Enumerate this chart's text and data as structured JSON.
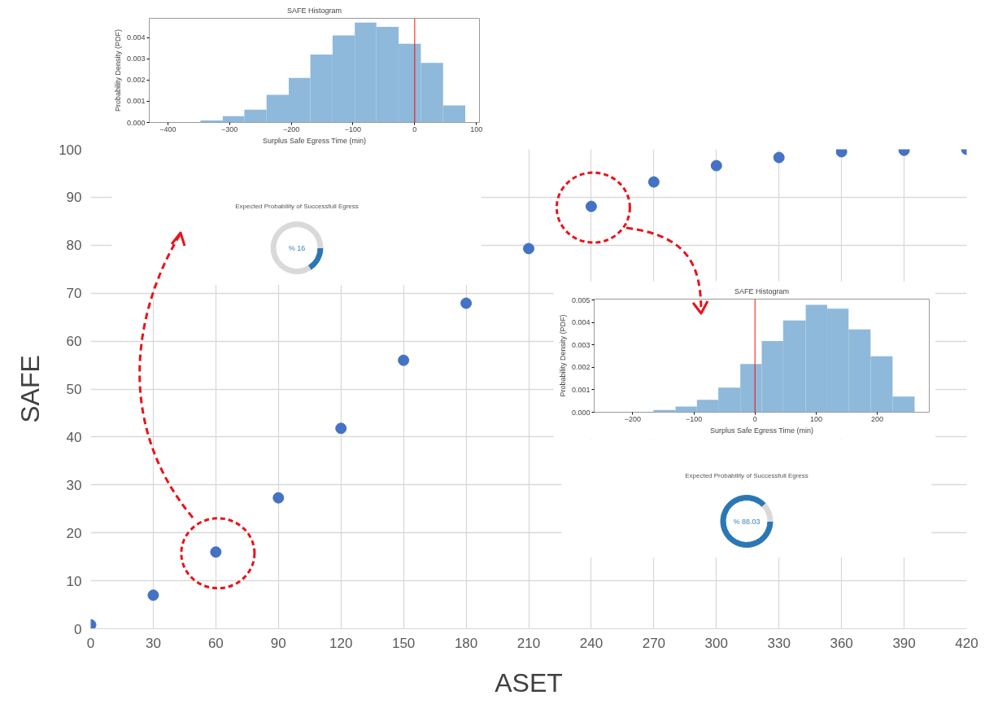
{
  "chart_data": [
    {
      "type": "scatter",
      "xlabel": "ASET",
      "ylabel": "SAFE",
      "x": [
        0,
        30,
        60,
        90,
        120,
        150,
        180,
        210,
        240,
        270,
        300,
        330,
        360,
        390,
        420
      ],
      "values": [
        0.8,
        7,
        16,
        27.3,
        41.8,
        56,
        67.9,
        79.3,
        88.1,
        93.2,
        96.6,
        98.3,
        99.5,
        99.8,
        100
      ],
      "color": "#4472c4",
      "marker": "circle",
      "xlim": [
        0,
        420
      ],
      "ylim": [
        0,
        100
      ],
      "xticks": [
        0,
        30,
        60,
        90,
        120,
        150,
        180,
        210,
        240,
        270,
        300,
        330,
        360,
        390,
        420
      ],
      "yticks": [
        0,
        10,
        20,
        30,
        40,
        50,
        60,
        70,
        80,
        90,
        100
      ],
      "grid": true
    },
    {
      "type": "histogram",
      "title": "SAFE Histogram",
      "xlabel": "Surplus Safe Egress Time (min)",
      "ylabel": "Probability Density (PDF)",
      "bins": [
        -347,
        -311,
        -276,
        -240,
        -204,
        -169,
        -133,
        -97,
        -62,
        -26,
        10,
        46,
        82
      ],
      "values": [
        0.0001,
        0.0003,
        0.0006,
        0.0013,
        0.0021,
        0.0032,
        0.0041,
        0.0047,
        0.0045,
        0.0037,
        0.0028,
        0.0008
      ],
      "color": "#8fb9da",
      "xlim": [
        -430,
        105
      ],
      "ylim": [
        0,
        0.0049
      ],
      "xticks": [
        {
          "value": -400,
          "label": "−400"
        },
        {
          "value": -300,
          "label": "−300"
        },
        {
          "value": -200,
          "label": "−200"
        },
        {
          "value": -100,
          "label": "−100"
        },
        0,
        100
      ],
      "yticks": [
        {
          "value": 0,
          "label": "0.000"
        },
        {
          "value": 0.001,
          "label": "0.001"
        },
        {
          "value": 0.002,
          "label": "0.002"
        },
        {
          "value": 0.003,
          "label": "0.003"
        },
        {
          "value": 0.004,
          "label": "0.004"
        }
      ],
      "ref_lines": [
        {
          "axis": "x",
          "value": 0,
          "color": "#ff0000"
        }
      ],
      "grid": false
    },
    {
      "type": "donut",
      "title": "Expected Probability of Successfull Egress",
      "categories": [
        null,
        null
      ],
      "values": [
        16,
        84
      ],
      "colors": [
        "#2a77b4",
        "#d9d9d9"
      ],
      "annotations": [
        "% 16"
      ]
    },
    {
      "type": "histogram",
      "title": "SAFE Histogram",
      "xlabel": "Surplus Safe Egress Time (min)",
      "ylabel": "Probability Density (PDF)",
      "bins": [
        -166,
        -130,
        -95,
        -60,
        -24,
        11,
        46,
        83,
        118,
        153,
        189,
        225,
        261
      ],
      "values": [
        0.0001,
        0.00025,
        0.00055,
        0.0011,
        0.00215,
        0.00318,
        0.0041,
        0.0048,
        0.00462,
        0.0037,
        0.0025,
        0.0007
      ],
      "color": "#8fb9da",
      "xlim": [
        -263,
        285
      ],
      "ylim": [
        0,
        0.00505
      ],
      "xticks": [
        {
          "value": -200,
          "label": "−200"
        },
        {
          "value": -100,
          "label": "−100"
        },
        0,
        100,
        200
      ],
      "yticks": [
        {
          "value": 0,
          "label": "0.000"
        },
        {
          "value": 0.001,
          "label": "0.001"
        },
        {
          "value": 0.002,
          "label": "0.002"
        },
        {
          "value": 0.003,
          "label": "0.003"
        },
        {
          "value": 0.004,
          "label": "0.004"
        },
        {
          "value": 0.005,
          "label": "0.005"
        }
      ],
      "ref_lines": [
        {
          "axis": "x",
          "value": 0,
          "color": "#ff0000"
        }
      ],
      "grid": false
    },
    {
      "type": "donut",
      "title": "Expected Probability of Successfull Egress",
      "categories": [
        null,
        null
      ],
      "values": [
        88.03,
        11.97
      ],
      "colors": [
        "#2a77b4",
        "#d9d9d9"
      ],
      "annotations": [
        "% 88.03"
      ]
    }
  ]
}
